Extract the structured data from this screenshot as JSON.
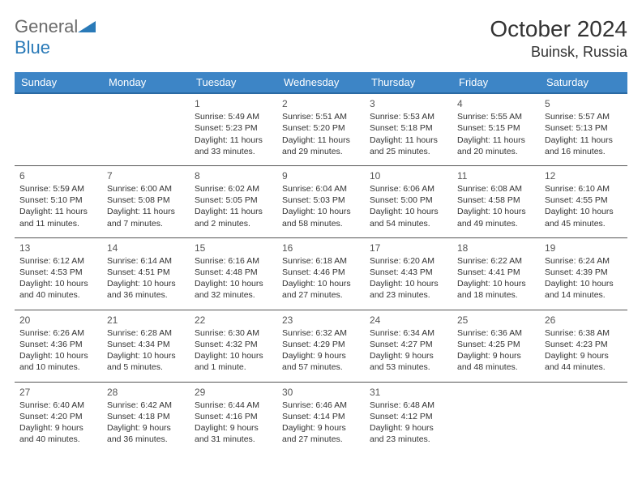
{
  "logo": {
    "text_general": "General",
    "text_blue": "Blue"
  },
  "title": "October 2024",
  "location": "Buinsk, Russia",
  "colors": {
    "header_bg": "#3d85c6",
    "header_border": "#2a6aa3",
    "cell_border": "#555555",
    "text": "#333333",
    "daynum": "#555555",
    "logo_blue": "#2a7ab8",
    "logo_gray": "#6a6a6a",
    "background": "#ffffff"
  },
  "weekdays": [
    "Sunday",
    "Monday",
    "Tuesday",
    "Wednesday",
    "Thursday",
    "Friday",
    "Saturday"
  ],
  "weeks": [
    [
      null,
      null,
      {
        "n": "1",
        "sunrise": "5:49 AM",
        "sunset": "5:23 PM",
        "daylight": "11 hours and 33 minutes."
      },
      {
        "n": "2",
        "sunrise": "5:51 AM",
        "sunset": "5:20 PM",
        "daylight": "11 hours and 29 minutes."
      },
      {
        "n": "3",
        "sunrise": "5:53 AM",
        "sunset": "5:18 PM",
        "daylight": "11 hours and 25 minutes."
      },
      {
        "n": "4",
        "sunrise": "5:55 AM",
        "sunset": "5:15 PM",
        "daylight": "11 hours and 20 minutes."
      },
      {
        "n": "5",
        "sunrise": "5:57 AM",
        "sunset": "5:13 PM",
        "daylight": "11 hours and 16 minutes."
      }
    ],
    [
      {
        "n": "6",
        "sunrise": "5:59 AM",
        "sunset": "5:10 PM",
        "daylight": "11 hours and 11 minutes."
      },
      {
        "n": "7",
        "sunrise": "6:00 AM",
        "sunset": "5:08 PM",
        "daylight": "11 hours and 7 minutes."
      },
      {
        "n": "8",
        "sunrise": "6:02 AM",
        "sunset": "5:05 PM",
        "daylight": "11 hours and 2 minutes."
      },
      {
        "n": "9",
        "sunrise": "6:04 AM",
        "sunset": "5:03 PM",
        "daylight": "10 hours and 58 minutes."
      },
      {
        "n": "10",
        "sunrise": "6:06 AM",
        "sunset": "5:00 PM",
        "daylight": "10 hours and 54 minutes."
      },
      {
        "n": "11",
        "sunrise": "6:08 AM",
        "sunset": "4:58 PM",
        "daylight": "10 hours and 49 minutes."
      },
      {
        "n": "12",
        "sunrise": "6:10 AM",
        "sunset": "4:55 PM",
        "daylight": "10 hours and 45 minutes."
      }
    ],
    [
      {
        "n": "13",
        "sunrise": "6:12 AM",
        "sunset": "4:53 PM",
        "daylight": "10 hours and 40 minutes."
      },
      {
        "n": "14",
        "sunrise": "6:14 AM",
        "sunset": "4:51 PM",
        "daylight": "10 hours and 36 minutes."
      },
      {
        "n": "15",
        "sunrise": "6:16 AM",
        "sunset": "4:48 PM",
        "daylight": "10 hours and 32 minutes."
      },
      {
        "n": "16",
        "sunrise": "6:18 AM",
        "sunset": "4:46 PM",
        "daylight": "10 hours and 27 minutes."
      },
      {
        "n": "17",
        "sunrise": "6:20 AM",
        "sunset": "4:43 PM",
        "daylight": "10 hours and 23 minutes."
      },
      {
        "n": "18",
        "sunrise": "6:22 AM",
        "sunset": "4:41 PM",
        "daylight": "10 hours and 18 minutes."
      },
      {
        "n": "19",
        "sunrise": "6:24 AM",
        "sunset": "4:39 PM",
        "daylight": "10 hours and 14 minutes."
      }
    ],
    [
      {
        "n": "20",
        "sunrise": "6:26 AM",
        "sunset": "4:36 PM",
        "daylight": "10 hours and 10 minutes."
      },
      {
        "n": "21",
        "sunrise": "6:28 AM",
        "sunset": "4:34 PM",
        "daylight": "10 hours and 5 minutes."
      },
      {
        "n": "22",
        "sunrise": "6:30 AM",
        "sunset": "4:32 PM",
        "daylight": "10 hours and 1 minute."
      },
      {
        "n": "23",
        "sunrise": "6:32 AM",
        "sunset": "4:29 PM",
        "daylight": "9 hours and 57 minutes."
      },
      {
        "n": "24",
        "sunrise": "6:34 AM",
        "sunset": "4:27 PM",
        "daylight": "9 hours and 53 minutes."
      },
      {
        "n": "25",
        "sunrise": "6:36 AM",
        "sunset": "4:25 PM",
        "daylight": "9 hours and 48 minutes."
      },
      {
        "n": "26",
        "sunrise": "6:38 AM",
        "sunset": "4:23 PM",
        "daylight": "9 hours and 44 minutes."
      }
    ],
    [
      {
        "n": "27",
        "sunrise": "6:40 AM",
        "sunset": "4:20 PM",
        "daylight": "9 hours and 40 minutes."
      },
      {
        "n": "28",
        "sunrise": "6:42 AM",
        "sunset": "4:18 PM",
        "daylight": "9 hours and 36 minutes."
      },
      {
        "n": "29",
        "sunrise": "6:44 AM",
        "sunset": "4:16 PM",
        "daylight": "9 hours and 31 minutes."
      },
      {
        "n": "30",
        "sunrise": "6:46 AM",
        "sunset": "4:14 PM",
        "daylight": "9 hours and 27 minutes."
      },
      {
        "n": "31",
        "sunrise": "6:48 AM",
        "sunset": "4:12 PM",
        "daylight": "9 hours and 23 minutes."
      },
      null,
      null
    ]
  ],
  "labels": {
    "sunrise": "Sunrise:",
    "sunset": "Sunset:",
    "daylight": "Daylight:"
  }
}
